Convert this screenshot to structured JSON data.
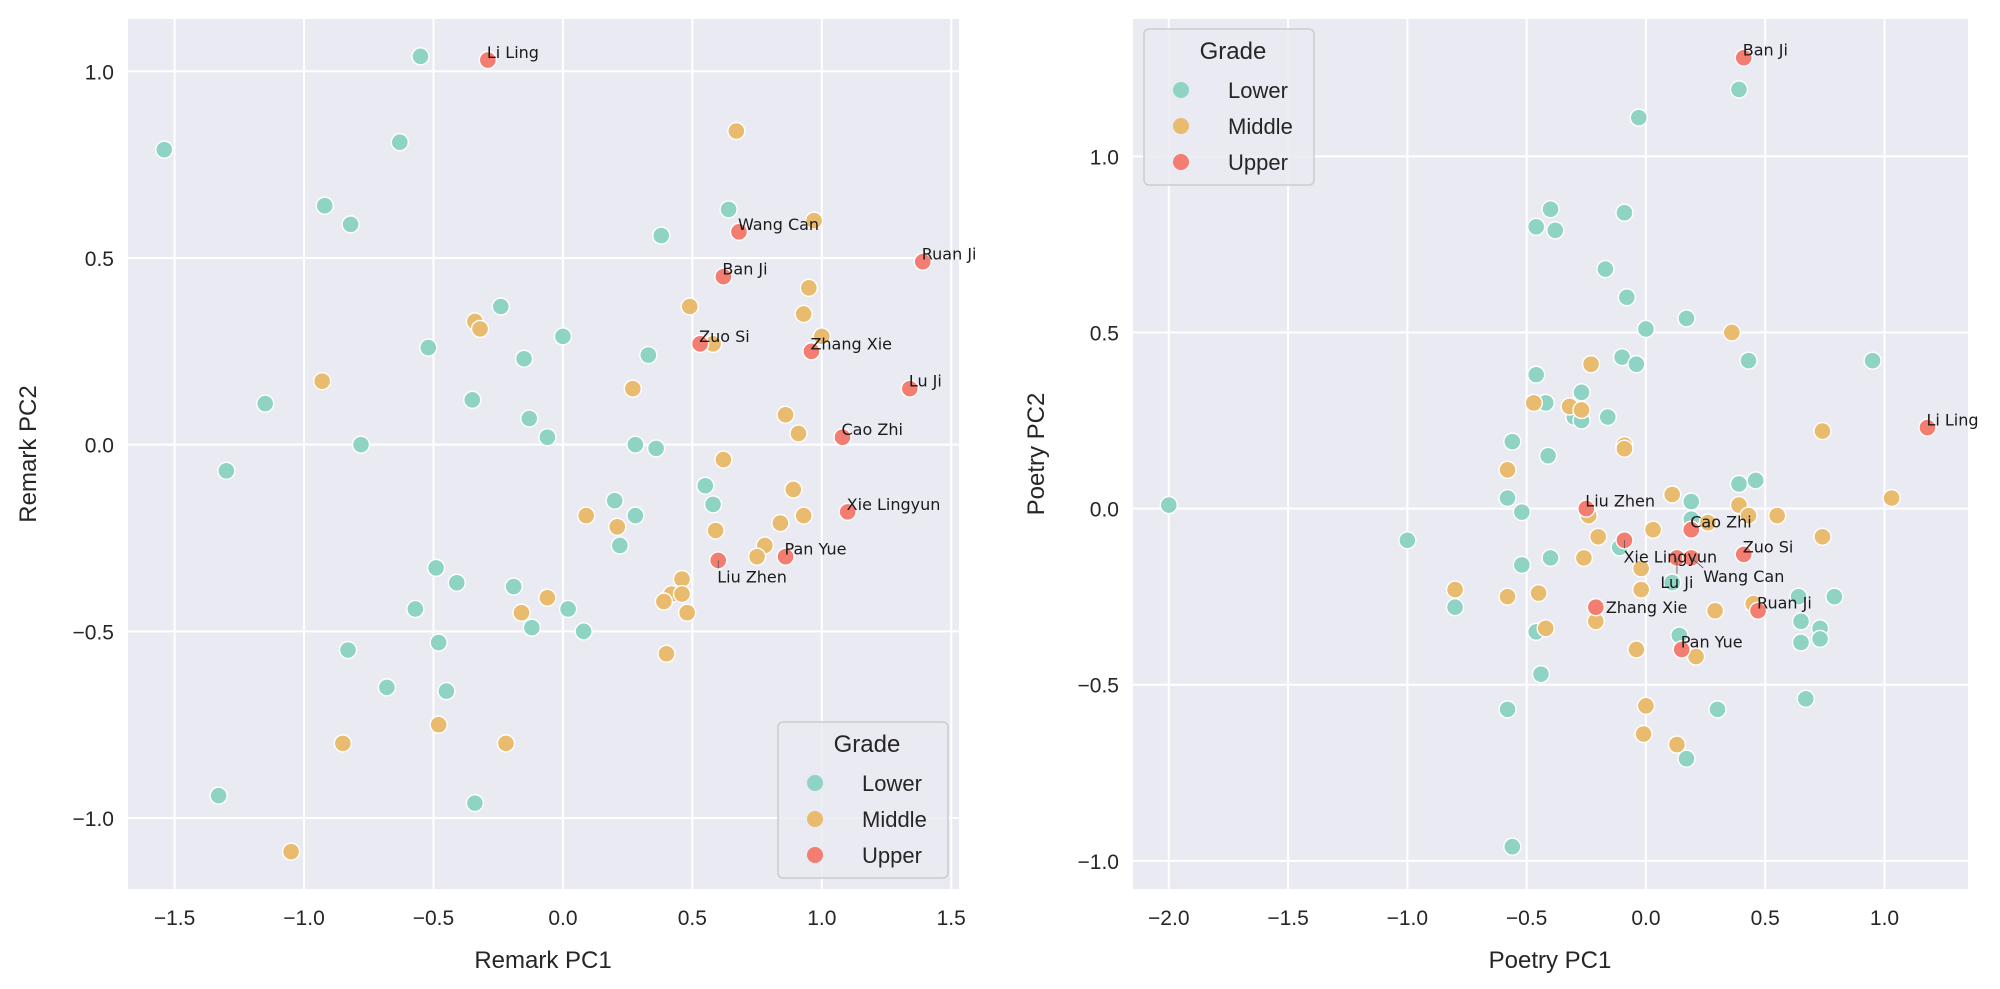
{
  "colors": {
    "panel_bg": "#eaeaf2",
    "grid": "#ffffff",
    "Lower": "#8fd3c4",
    "Middle": "#e8bb6e",
    "Upper": "#f37d70",
    "legend_border": "#cccccc"
  },
  "chart_data": [
    {
      "type": "scatter",
      "title": "",
      "xlabel": "Remark PC1",
      "ylabel": "Remark PC2",
      "xlim": [
        -1.68,
        1.53
      ],
      "ylim": [
        -1.19,
        1.14
      ],
      "xticks": [
        -1.5,
        -1.0,
        -0.5,
        0.0,
        0.5,
        1.0,
        1.5
      ],
      "xtick_labels": [
        "−1.5",
        "−1.0",
        "−0.5",
        "0.0",
        "0.5",
        "1.0",
        "1.5"
      ],
      "yticks": [
        -1.0,
        -0.5,
        0.0,
        0.5,
        1.0
      ],
      "ytick_labels": [
        "−1.0",
        "−0.5",
        "0.0",
        "0.5",
        "1.0"
      ],
      "grid": true,
      "legend": {
        "title": "Grade",
        "position": "lower-right",
        "entries": [
          "Lower",
          "Middle",
          "Upper"
        ]
      },
      "series": [
        {
          "name": "Lower",
          "points": [
            [
              -1.54,
              0.79
            ],
            [
              -0.55,
              1.04
            ],
            [
              -0.63,
              0.81
            ],
            [
              -0.92,
              0.64
            ],
            [
              -0.82,
              0.59
            ],
            [
              -0.24,
              0.37
            ],
            [
              -0.52,
              0.26
            ],
            [
              -1.15,
              0.11
            ],
            [
              -0.35,
              0.12
            ],
            [
              -0.15,
              0.23
            ],
            [
              0.0,
              0.29
            ],
            [
              -0.13,
              0.07
            ],
            [
              -0.06,
              0.02
            ],
            [
              -0.78,
              0.0
            ],
            [
              -1.3,
              -0.07
            ],
            [
              0.38,
              0.56
            ],
            [
              0.64,
              0.63
            ],
            [
              0.33,
              0.24
            ],
            [
              0.28,
              0.0
            ],
            [
              0.36,
              -0.01
            ],
            [
              0.55,
              -0.11
            ],
            [
              0.58,
              -0.16
            ],
            [
              0.2,
              -0.15
            ],
            [
              0.28,
              -0.19
            ],
            [
              0.22,
              -0.27
            ],
            [
              -0.49,
              -0.33
            ],
            [
              -0.41,
              -0.37
            ],
            [
              -0.19,
              -0.38
            ],
            [
              -0.57,
              -0.44
            ],
            [
              -0.12,
              -0.49
            ],
            [
              0.02,
              -0.44
            ],
            [
              0.08,
              -0.5
            ],
            [
              -0.48,
              -0.53
            ],
            [
              -0.83,
              -0.55
            ],
            [
              -0.45,
              -0.66
            ],
            [
              -0.68,
              -0.65
            ],
            [
              -1.33,
              -0.94
            ],
            [
              -0.34,
              -0.96
            ]
          ]
        },
        {
          "name": "Middle",
          "points": [
            [
              0.67,
              0.84
            ],
            [
              0.97,
              0.6
            ],
            [
              0.49,
              0.37
            ],
            [
              0.95,
              0.42
            ],
            [
              0.93,
              0.35
            ],
            [
              1.0,
              0.29
            ],
            [
              0.58,
              0.27
            ],
            [
              -0.34,
              0.33
            ],
            [
              -0.32,
              0.31
            ],
            [
              -0.93,
              0.17
            ],
            [
              0.27,
              0.15
            ],
            [
              0.86,
              0.08
            ],
            [
              0.91,
              0.03
            ],
            [
              0.62,
              -0.04
            ],
            [
              0.89,
              -0.12
            ],
            [
              0.93,
              -0.19
            ],
            [
              0.84,
              -0.21
            ],
            [
              0.78,
              -0.27
            ],
            [
              0.75,
              -0.3
            ],
            [
              0.59,
              -0.23
            ],
            [
              0.09,
              -0.19
            ],
            [
              0.21,
              -0.22
            ],
            [
              0.46,
              -0.36
            ],
            [
              0.42,
              -0.4
            ],
            [
              0.46,
              -0.4
            ],
            [
              0.39,
              -0.42
            ],
            [
              0.48,
              -0.45
            ],
            [
              -0.06,
              -0.41
            ],
            [
              -0.16,
              -0.45
            ],
            [
              0.4,
              -0.56
            ],
            [
              -0.48,
              -0.75
            ],
            [
              -0.22,
              -0.8
            ],
            [
              -0.85,
              -0.8
            ],
            [
              -1.05,
              -1.09
            ]
          ]
        },
        {
          "name": "Upper",
          "points": [
            [
              -0.29,
              1.03,
              "Li Ling"
            ],
            [
              0.68,
              0.57,
              "Wang Can"
            ],
            [
              1.39,
              0.49,
              "Ruan Ji"
            ],
            [
              0.62,
              0.45,
              "Ban Ji"
            ],
            [
              0.53,
              0.27,
              "Zuo Si"
            ],
            [
              0.96,
              0.25,
              "Zhang Xie"
            ],
            [
              1.34,
              0.15,
              "Lu Ji"
            ],
            [
              1.08,
              0.02,
              "Cao Zhi"
            ],
            [
              1.1,
              -0.18,
              "Xie Lingyun"
            ],
            [
              0.6,
              -0.31,
              "Liu Zhen"
            ],
            [
              0.86,
              -0.3,
              "Pan Yue"
            ]
          ]
        }
      ]
    },
    {
      "type": "scatter",
      "title": "",
      "xlabel": "Poetry PC1",
      "ylabel": "Poetry PC2",
      "xlim": [
        -2.15,
        1.35
      ],
      "ylim": [
        -1.08,
        1.39
      ],
      "xticks": [
        -2.0,
        -1.5,
        -1.0,
        -0.5,
        0.0,
        0.5,
        1.0
      ],
      "xtick_labels": [
        "−2.0",
        "−1.5",
        "−1.0",
        "−0.5",
        "0.0",
        "0.5",
        "1.0"
      ],
      "yticks": [
        -1.0,
        -0.5,
        0.0,
        0.5,
        1.0
      ],
      "ytick_labels": [
        "−1.0",
        "−0.5",
        "0.0",
        "0.5",
        "1.0"
      ],
      "grid": true,
      "legend": {
        "title": "Grade",
        "position": "upper-left",
        "entries": [
          "Lower",
          "Middle",
          "Upper"
        ]
      },
      "series": [
        {
          "name": "Lower",
          "points": [
            [
              -2.0,
              0.01
            ],
            [
              -1.0,
              -0.09
            ],
            [
              -0.8,
              -0.28
            ],
            [
              -0.03,
              1.11
            ],
            [
              0.39,
              1.19
            ],
            [
              -0.4,
              0.85
            ],
            [
              -0.46,
              0.8
            ],
            [
              -0.38,
              0.79
            ],
            [
              -0.09,
              0.84
            ],
            [
              -0.17,
              0.68
            ],
            [
              -0.08,
              0.6
            ],
            [
              0.0,
              0.51
            ],
            [
              0.17,
              0.54
            ],
            [
              -0.46,
              0.38
            ],
            [
              -0.27,
              0.33
            ],
            [
              -0.42,
              0.3
            ],
            [
              -0.1,
              0.43
            ],
            [
              -0.04,
              0.41
            ],
            [
              -0.3,
              0.26
            ],
            [
              -0.16,
              0.26
            ],
            [
              -0.27,
              0.25
            ],
            [
              0.43,
              0.42
            ],
            [
              0.95,
              0.42
            ],
            [
              -0.41,
              0.15
            ],
            [
              -0.56,
              0.19
            ],
            [
              -0.58,
              0.03
            ],
            [
              -0.52,
              -0.01
            ],
            [
              -0.4,
              -0.14
            ],
            [
              -0.52,
              -0.16
            ],
            [
              0.39,
              0.07
            ],
            [
              0.46,
              0.08
            ],
            [
              0.19,
              0.02
            ],
            [
              0.19,
              -0.03
            ],
            [
              -0.11,
              -0.11
            ],
            [
              0.11,
              -0.21
            ],
            [
              -0.46,
              -0.35
            ],
            [
              -0.44,
              -0.47
            ],
            [
              -0.21,
              -0.32
            ],
            [
              0.14,
              -0.36
            ],
            [
              0.64,
              -0.25
            ],
            [
              0.65,
              -0.32
            ],
            [
              0.73,
              -0.34
            ],
            [
              0.73,
              -0.37
            ],
            [
              0.65,
              -0.38
            ],
            [
              0.79,
              -0.25
            ],
            [
              0.67,
              -0.54
            ],
            [
              0.3,
              -0.57
            ],
            [
              -0.58,
              -0.57
            ],
            [
              0.17,
              -0.71
            ],
            [
              -0.56,
              -0.96
            ]
          ]
        },
        {
          "name": "Middle",
          "points": [
            [
              0.36,
              0.5
            ],
            [
              -0.23,
              0.41
            ],
            [
              -0.47,
              0.3
            ],
            [
              -0.32,
              0.29
            ],
            [
              -0.27,
              0.28
            ],
            [
              -0.09,
              0.18
            ],
            [
              -0.09,
              0.17
            ],
            [
              0.74,
              0.22
            ],
            [
              1.03,
              0.03
            ],
            [
              -0.58,
              0.11
            ],
            [
              0.11,
              0.04
            ],
            [
              0.39,
              0.01
            ],
            [
              0.43,
              -0.02
            ],
            [
              0.55,
              -0.02
            ],
            [
              0.74,
              -0.08
            ],
            [
              -0.24,
              -0.02
            ],
            [
              -0.2,
              -0.08
            ],
            [
              0.03,
              -0.06
            ],
            [
              -0.02,
              -0.17
            ],
            [
              -0.26,
              -0.14
            ],
            [
              0.26,
              -0.04
            ],
            [
              -0.02,
              -0.23
            ],
            [
              -0.8,
              -0.23
            ],
            [
              -0.58,
              -0.25
            ],
            [
              -0.45,
              -0.24
            ],
            [
              -0.21,
              -0.32
            ],
            [
              -0.42,
              -0.34
            ],
            [
              0.29,
              -0.29
            ],
            [
              0.45,
              -0.27
            ],
            [
              -0.04,
              -0.4
            ],
            [
              0.21,
              -0.42
            ],
            [
              0.0,
              -0.56
            ],
            [
              -0.01,
              -0.64
            ],
            [
              0.13,
              -0.67
            ]
          ]
        },
        {
          "name": "Upper",
          "points": [
            [
              0.41,
              1.28,
              "Ban Ji"
            ],
            [
              1.18,
              0.23,
              "Li Ling"
            ],
            [
              -0.25,
              0.0,
              "Liu Zhen"
            ],
            [
              -0.09,
              -0.09,
              "Xie Lingyun"
            ],
            [
              0.19,
              -0.06,
              "Cao Zhi"
            ],
            [
              0.13,
              -0.14,
              "Lu Ji"
            ],
            [
              0.19,
              -0.14,
              "Wang Can"
            ],
            [
              0.41,
              -0.13,
              "Zuo Si"
            ],
            [
              -0.21,
              -0.28,
              "Zhang Xie"
            ],
            [
              0.47,
              -0.29,
              "Ruan Ji"
            ],
            [
              0.15,
              -0.4,
              "Pan Yue"
            ]
          ]
        }
      ]
    }
  ]
}
